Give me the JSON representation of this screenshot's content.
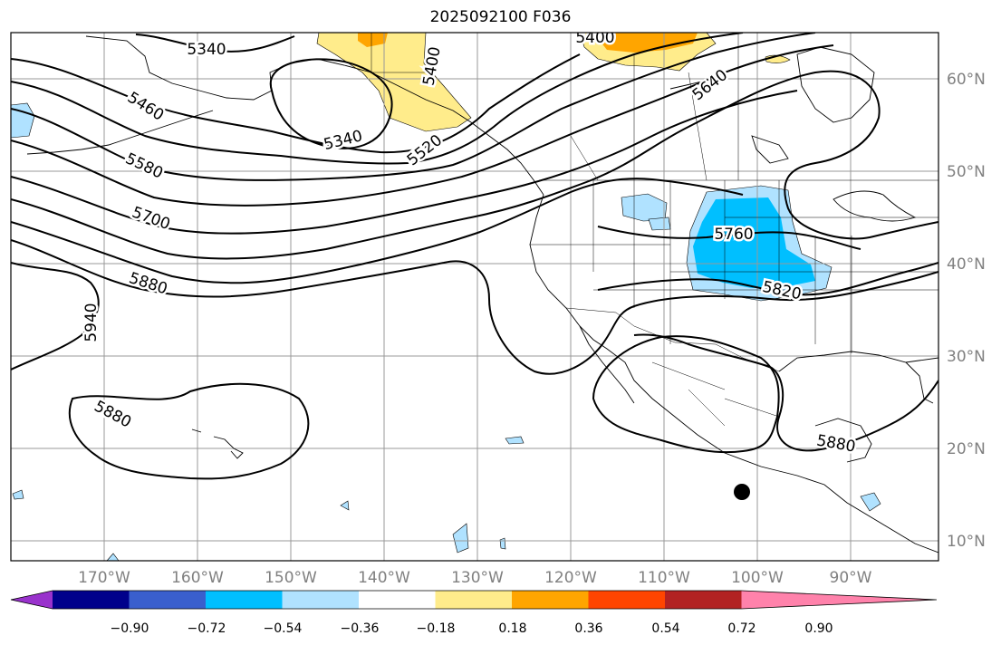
{
  "title": "2025092100 F036",
  "map": {
    "lon_labels": [
      "170°W",
      "160°W",
      "150°W",
      "140°W",
      "130°W",
      "120°W",
      "110°W",
      "100°W",
      "90°W"
    ],
    "lat_labels": [
      "60°N",
      "50°N",
      "40°N",
      "30°N",
      "20°N",
      "10°N"
    ],
    "contour_labels": [
      "5340",
      "5460",
      "5580",
      "5700",
      "5880",
      "5940",
      "5880",
      "5340",
      "5520",
      "5400",
      "5400",
      "5640",
      "5760",
      "5820",
      "5880"
    ],
    "marker": "black-dot"
  },
  "colorbar": {
    "ticks": [
      "−0.90",
      "−0.72",
      "−0.54",
      "−0.36",
      "−0.18",
      "0.18",
      "0.36",
      "0.54",
      "0.72",
      "0.90"
    ],
    "colors": [
      "#9932cc",
      "#00008b",
      "#3a5fcd",
      "#00bfff",
      "#b0e2ff",
      "#ffffff",
      "#ffec8b",
      "#ffa500",
      "#ff4500",
      "#b22222",
      "#ff82ab"
    ]
  },
  "colors": {
    "axis_label": "#808080",
    "grid": "#999999",
    "contour": "#000000"
  }
}
